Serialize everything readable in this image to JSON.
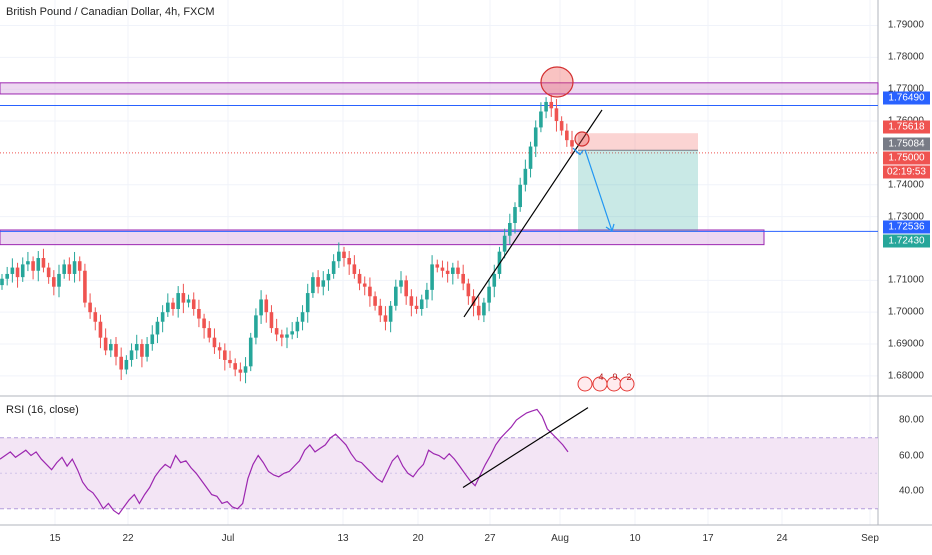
{
  "header": {
    "symbol_title": "British Pound / Canadian Dollar, 4h, FXCM",
    "rsi_title": "RSI (16, close)"
  },
  "price_axis": {
    "ticks": [
      "1.79000",
      "1.78000",
      "1.77000",
      "1.76000",
      "1.74000",
      "1.73000",
      "1.71000",
      "1.70000",
      "1.69000",
      "1.68000"
    ],
    "tick_values": [
      1.79,
      1.78,
      1.77,
      1.76,
      1.74,
      1.73,
      1.71,
      1.7,
      1.69,
      1.68
    ]
  },
  "rsi_axis": {
    "ticks": [
      "80.00",
      "60.00",
      "40.00"
    ],
    "tick_values": [
      80,
      60,
      40
    ]
  },
  "price_tags": [
    {
      "label": "1.76490",
      "value": 1.7649,
      "color": "#2962ff"
    },
    {
      "label": "1.75618",
      "value": 1.75618,
      "color": "#ef5350"
    },
    {
      "label": "1.75084",
      "value": 1.75084,
      "color": "#787b86"
    },
    {
      "label": "1.75000",
      "value": 1.75,
      "color": "#ef5350"
    },
    {
      "label": "02:19:53",
      "value": 1.7482,
      "color": "#ef5350"
    },
    {
      "label": "1.72536",
      "value": 1.72536,
      "color": "#2962ff"
    },
    {
      "label": "1.72430",
      "value": 1.7243,
      "color": "#26a69a"
    }
  ],
  "x_axis": {
    "labels": [
      "15",
      "22",
      "Jul",
      "13",
      "20",
      "27",
      "Aug",
      "10",
      "17",
      "24",
      "Sep"
    ]
  },
  "event_icons": {
    "labels": [
      "4",
      "9",
      "2"
    ]
  },
  "colors": {
    "up": "#26a69a",
    "down": "#ef5350",
    "zone_fill": "#e1bee7",
    "zone_border": "#9c27b0",
    "rsi_line": "#9c27b0",
    "rsi_band": "#f3e5f5"
  },
  "chart_data": {
    "type": "candlestick",
    "title": "British Pound / Canadian Dollar, 4h, FXCM",
    "y_range": [
      1.674,
      1.798
    ],
    "resistance_zone": [
      1.7685,
      1.772
    ],
    "support_zone": [
      1.7212,
      1.7258
    ],
    "short_position": {
      "entry": 1.75084,
      "stop": 1.75618,
      "target": 1.72536
    },
    "close_series": [
      1.7105,
      1.712,
      1.714,
      1.711,
      1.715,
      1.716,
      1.713,
      1.717,
      1.714,
      1.711,
      1.708,
      1.712,
      1.715,
      1.712,
      1.716,
      1.713,
      1.703,
      1.7,
      1.697,
      1.692,
      1.688,
      1.69,
      1.686,
      1.682,
      1.685,
      1.688,
      1.69,
      1.686,
      1.69,
      1.693,
      1.697,
      1.7,
      1.703,
      1.701,
      1.706,
      1.703,
      1.704,
      1.701,
      1.698,
      1.695,
      1.692,
      1.689,
      1.688,
      1.685,
      1.684,
      1.682,
      1.681,
      1.683,
      1.692,
      1.699,
      1.704,
      1.7,
      1.695,
      1.693,
      1.692,
      1.693,
      1.694,
      1.697,
      1.7,
      1.706,
      1.711,
      1.708,
      1.71,
      1.712,
      1.716,
      1.719,
      1.717,
      1.715,
      1.712,
      1.709,
      1.708,
      1.705,
      1.702,
      1.699,
      1.697,
      1.702,
      1.708,
      1.71,
      1.705,
      1.702,
      1.701,
      1.704,
      1.707,
      1.715,
      1.714,
      1.713,
      1.712,
      1.714,
      1.712,
      1.709,
      1.705,
      1.702,
      1.699,
      1.703,
      1.708,
      1.712,
      1.719,
      1.724,
      1.728,
      1.733,
      1.74,
      1.745,
      1.752,
      1.758,
      1.763,
      1.766,
      1.764,
      1.76,
      1.757,
      1.754,
      1.752
    ],
    "rsi_series": [
      58,
      60,
      62,
      59,
      61,
      63,
      60,
      62,
      58,
      55,
      52,
      56,
      59,
      54,
      58,
      52,
      45,
      41,
      39,
      35,
      30,
      33,
      29,
      27,
      31,
      35,
      38,
      33,
      38,
      42,
      48,
      52,
      55,
      53,
      60,
      56,
      57,
      53,
      50,
      46,
      42,
      38,
      37,
      33,
      34,
      31,
      30,
      33,
      47,
      55,
      60,
      56,
      51,
      49,
      48,
      50,
      51,
      54,
      57,
      63,
      66,
      62,
      64,
      66,
      70,
      72,
      69,
      66,
      61,
      57,
      56,
      53,
      50,
      47,
      45,
      51,
      57,
      60,
      54,
      50,
      48,
      52,
      55,
      63,
      61,
      60,
      58,
      61,
      58,
      54,
      50,
      46,
      43,
      49,
      55,
      60,
      66,
      70,
      73,
      76,
      80,
      82,
      84,
      85,
      86,
      82,
      75,
      72,
      69,
      66,
      62
    ]
  }
}
